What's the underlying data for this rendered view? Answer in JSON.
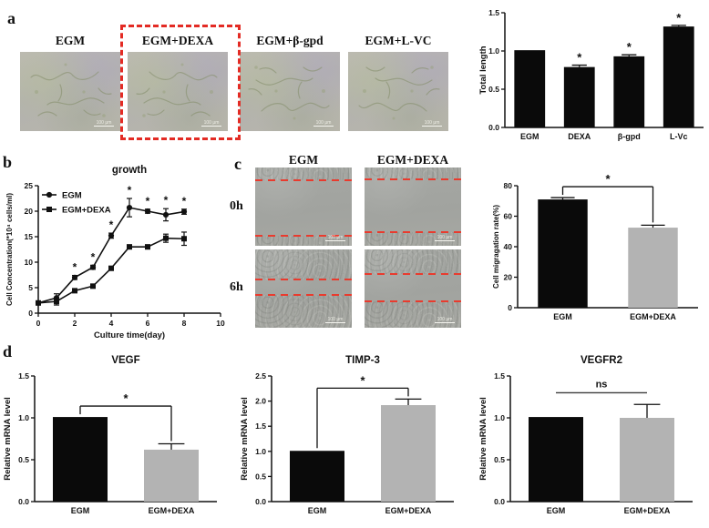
{
  "figure": {
    "scale_bar_label": "100 μm",
    "panel_a": {
      "label": "a",
      "images": [
        {
          "label": "EGM",
          "highlighted": false
        },
        {
          "label": "EGM+DEXA",
          "highlighted": true
        },
        {
          "label": "EGM+β-gpd",
          "highlighted": false
        },
        {
          "label": "EGM+L-VC",
          "highlighted": false
        }
      ],
      "highlight_color": "#e32b24"
    },
    "panel_b": {
      "label": "b"
    },
    "panel_c": {
      "label": "c",
      "col_headers": [
        "EGM",
        "EGM+DEXA"
      ],
      "row_labels": [
        "0h",
        "6h"
      ],
      "wound_line_color": "#e93b2e",
      "wound_images": [
        {
          "col": "EGM",
          "row": "0h",
          "lines": [
            0.16,
            0.87
          ]
        },
        {
          "col": "EGM+DEXA",
          "row": "0h",
          "lines": [
            0.15,
            0.83
          ]
        },
        {
          "col": "EGM",
          "row": "6h",
          "lines": [
            0.38,
            0.58
          ]
        },
        {
          "col": "EGM+DEXA",
          "row": "6h",
          "lines": [
            0.31,
            0.66
          ]
        }
      ]
    },
    "panel_d": {
      "label": "d"
    }
  },
  "chart_data": [
    {
      "id": "total_length",
      "type": "bar",
      "title": "",
      "ylabel": "Total length",
      "categories": [
        "EGM",
        "DEXA",
        "β-gpd",
        "L-Vc"
      ],
      "values": [
        1.01,
        0.79,
        0.93,
        1.32
      ],
      "errors": [
        0,
        0.025,
        0.02,
        0.015
      ],
      "sig": [
        "",
        "*",
        "*",
        "*"
      ],
      "bar_colors": [
        "#0a0a0a",
        "#0a0a0a",
        "#0a0a0a",
        "#0a0a0a"
      ],
      "ylim": [
        0,
        1.5
      ],
      "yticks": [
        "0.0",
        "0.5",
        "1.0",
        "1.5"
      ]
    },
    {
      "id": "growth",
      "type": "line",
      "title": "growth",
      "xlabel": "Culture time(day)",
      "ylabel": "Cell Concentration(*10⁴ cells/ml)",
      "xlim": [
        0,
        10
      ],
      "xticks": [
        0,
        2,
        4,
        6,
        8,
        10
      ],
      "ylim": [
        0,
        25
      ],
      "yticks": [
        0,
        5,
        10,
        15,
        20,
        25
      ],
      "x": [
        0,
        1,
        2,
        3,
        4,
        5,
        6,
        7,
        8
      ],
      "series": [
        {
          "name": "EGM",
          "marker": "circle",
          "values": [
            2,
            3,
            7,
            9,
            15.2,
            20.7,
            20,
            19.3,
            19.9
          ],
          "errors": [
            0.3,
            0.8,
            0.4,
            0.4,
            0.5,
            1.8,
            0.4,
            1.2,
            0.5
          ]
        },
        {
          "name": "EGM+DEXA",
          "marker": "square",
          "values": [
            2,
            2.3,
            4.4,
            5.3,
            8.8,
            13,
            13,
            14.7,
            14.6
          ],
          "errors": [
            0.3,
            0.7,
            0.3,
            0.3,
            0.4,
            0.4,
            0.4,
            0.8,
            1.3
          ]
        }
      ],
      "stars_x": [
        2,
        3,
        4,
        5,
        6,
        7,
        8
      ],
      "legend_position": "top-left"
    },
    {
      "id": "migration",
      "type": "bar",
      "title": "",
      "ylabel": "Cell migragation rate(%)",
      "categories": [
        "EGM",
        "EGM+DEXA"
      ],
      "values": [
        71,
        52.5
      ],
      "errors": [
        1.2,
        1.6
      ],
      "sig": [
        "",
        ""
      ],
      "bar_colors": [
        "#0a0a0a",
        "#b3b3b3"
      ],
      "ylim": [
        0,
        80
      ],
      "yticks": [
        "0",
        "20",
        "40",
        "60",
        "80"
      ],
      "bracket": {
        "from": 0,
        "to": 1,
        "label": "*",
        "style": "bracket"
      }
    },
    {
      "id": "vegf",
      "type": "bar",
      "title": "VEGF",
      "ylabel": "Relative mRNA level",
      "categories": [
        "EGM",
        "EGM+DEXA"
      ],
      "values": [
        1.01,
        0.62
      ],
      "errors": [
        0,
        0.07
      ],
      "sig": [
        "",
        ""
      ],
      "bar_colors": [
        "#0a0a0a",
        "#b3b3b3"
      ],
      "ylim": [
        0,
        1.5
      ],
      "yticks": [
        "0.0",
        "0.5",
        "1.0",
        "1.5"
      ],
      "bracket": {
        "from": 0,
        "to": 1,
        "label": "*",
        "style": "bracket"
      }
    },
    {
      "id": "timp3",
      "type": "bar",
      "title": "TIMP-3",
      "ylabel": "Relative mRNA level",
      "categories": [
        "EGM",
        "EGM+DEXA"
      ],
      "values": [
        1.01,
        1.92
      ],
      "errors": [
        0,
        0.12
      ],
      "sig": [
        "",
        ""
      ],
      "bar_colors": [
        "#0a0a0a",
        "#b3b3b3"
      ],
      "ylim": [
        0,
        2.5
      ],
      "yticks": [
        "0.0",
        "0.5",
        "1.0",
        "1.5",
        "2.0",
        "2.5"
      ],
      "bracket": {
        "from": 0,
        "to": 1,
        "label": "*",
        "style": "bracket"
      }
    },
    {
      "id": "vegfr2",
      "type": "bar",
      "title": "VEGFR2",
      "ylabel": "Relative mRNA level",
      "categories": [
        "EGM",
        "EGM+DEXA"
      ],
      "values": [
        1.01,
        1.0
      ],
      "errors": [
        0,
        0.16
      ],
      "sig": [
        "",
        ""
      ],
      "bar_colors": [
        "#0a0a0a",
        "#b3b3b3"
      ],
      "ylim": [
        0,
        1.5
      ],
      "yticks": [
        "0.0",
        "0.5",
        "1.0",
        "1.5"
      ],
      "bracket": {
        "from": 0,
        "to": 1,
        "label": "ns",
        "style": "line",
        "level": 1.3
      }
    }
  ]
}
